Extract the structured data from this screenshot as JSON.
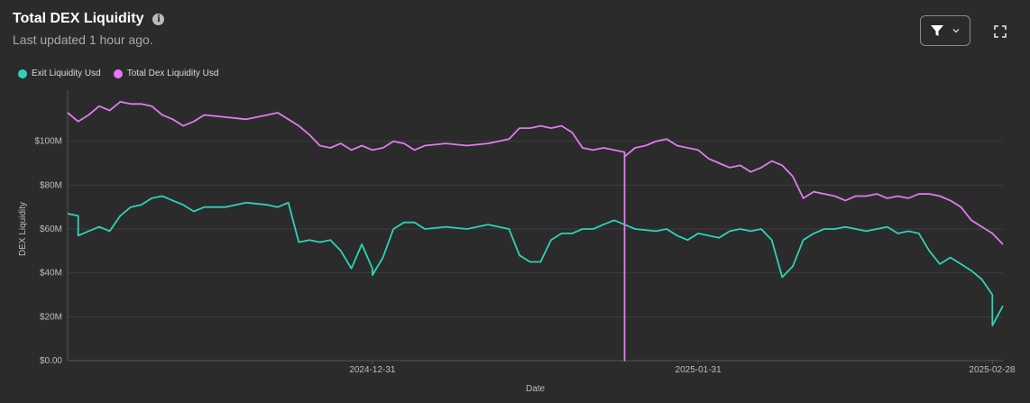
{
  "header": {
    "title": "Total DEX Liquidity",
    "subtitle": "Last updated 1 hour ago.",
    "info_icon": "info-icon"
  },
  "toolbar": {
    "filter_icon": "filter-icon",
    "dropdown_icon": "chevron-down-icon",
    "expand_icon": "expand-icon"
  },
  "colors": {
    "background": "#2b2b2b",
    "exit_liquidity": "#2ed3b7",
    "total_dex_liquidity": "#e27af2",
    "grid": "#3c3c3c"
  },
  "chart_data": {
    "type": "line",
    "xlabel": "Date",
    "ylabel": "DEX Liquidity",
    "x_range": [
      "2024-12-02",
      "2025-03-01"
    ],
    "x_ticks": [
      "2024-12-31",
      "2025-01-31",
      "2025-02-28"
    ],
    "y_ticks": [
      "$0.00",
      "$20M",
      "$40M",
      "$60M",
      "$80M",
      "$100M"
    ],
    "ylim": [
      0,
      120000000
    ],
    "grid": "horizontal",
    "legend_position": "top-left",
    "series": [
      {
        "name": "Exit Liquidity Usd",
        "color": "#2ed3b7",
        "points": [
          [
            "2024-12-02",
            67000000
          ],
          [
            "2024-12-03",
            66000000
          ],
          [
            "2024-12-03",
            57000000
          ],
          [
            "2024-12-04",
            59000000
          ],
          [
            "2024-12-05",
            61000000
          ],
          [
            "2024-12-06",
            59000000
          ],
          [
            "2024-12-07",
            66000000
          ],
          [
            "2024-12-08",
            70000000
          ],
          [
            "2024-12-09",
            71000000
          ],
          [
            "2024-12-10",
            74000000
          ],
          [
            "2024-12-11",
            75000000
          ],
          [
            "2024-12-12",
            73000000
          ],
          [
            "2024-12-13",
            71000000
          ],
          [
            "2024-12-14",
            68000000
          ],
          [
            "2024-12-15",
            70000000
          ],
          [
            "2024-12-17",
            70000000
          ],
          [
            "2024-12-19",
            72000000
          ],
          [
            "2024-12-21",
            71000000
          ],
          [
            "2024-12-22",
            70000000
          ],
          [
            "2024-12-23",
            72000000
          ],
          [
            "2024-12-24",
            54000000
          ],
          [
            "2024-12-25",
            55000000
          ],
          [
            "2024-12-26",
            54000000
          ],
          [
            "2024-12-27",
            55000000
          ],
          [
            "2024-12-28",
            50000000
          ],
          [
            "2024-12-29",
            42000000
          ],
          [
            "2024-12-30",
            53000000
          ],
          [
            "2024-12-31",
            42000000
          ],
          [
            "2024-12-31",
            39000000
          ],
          [
            "2025-01-01",
            47000000
          ],
          [
            "2025-01-02",
            60000000
          ],
          [
            "2025-01-03",
            63000000
          ],
          [
            "2025-01-04",
            63000000
          ],
          [
            "2025-01-05",
            60000000
          ],
          [
            "2025-01-07",
            61000000
          ],
          [
            "2025-01-09",
            60000000
          ],
          [
            "2025-01-11",
            62000000
          ],
          [
            "2025-01-13",
            60000000
          ],
          [
            "2025-01-14",
            48000000
          ],
          [
            "2025-01-15",
            45000000
          ],
          [
            "2025-01-16",
            45000000
          ],
          [
            "2025-01-17",
            55000000
          ],
          [
            "2025-01-18",
            58000000
          ],
          [
            "2025-01-19",
            58000000
          ],
          [
            "2025-01-20",
            60000000
          ],
          [
            "2025-01-21",
            60000000
          ],
          [
            "2025-01-22",
            62000000
          ],
          [
            "2025-01-23",
            64000000
          ],
          [
            "2025-01-24",
            62000000
          ],
          [
            "2025-01-25",
            60000000
          ],
          [
            "2025-01-27",
            59000000
          ],
          [
            "2025-01-28",
            60000000
          ],
          [
            "2025-01-29",
            57000000
          ],
          [
            "2025-01-30",
            55000000
          ],
          [
            "2025-01-31",
            58000000
          ],
          [
            "2025-02-02",
            56000000
          ],
          [
            "2025-02-03",
            59000000
          ],
          [
            "2025-02-04",
            60000000
          ],
          [
            "2025-02-05",
            59000000
          ],
          [
            "2025-02-06",
            60000000
          ],
          [
            "2025-02-07",
            55000000
          ],
          [
            "2025-02-08",
            38000000
          ],
          [
            "2025-02-09",
            43000000
          ],
          [
            "2025-02-10",
            55000000
          ],
          [
            "2025-02-11",
            58000000
          ],
          [
            "2025-02-12",
            60000000
          ],
          [
            "2025-02-13",
            60000000
          ],
          [
            "2025-02-14",
            61000000
          ],
          [
            "2025-02-15",
            60000000
          ],
          [
            "2025-02-16",
            59000000
          ],
          [
            "2025-02-17",
            60000000
          ],
          [
            "2025-02-18",
            61000000
          ],
          [
            "2025-02-19",
            58000000
          ],
          [
            "2025-02-20",
            59000000
          ],
          [
            "2025-02-21",
            58000000
          ],
          [
            "2025-02-22",
            50000000
          ],
          [
            "2025-02-23",
            44000000
          ],
          [
            "2025-02-24",
            47000000
          ],
          [
            "2025-02-25",
            44000000
          ],
          [
            "2025-02-26",
            41000000
          ],
          [
            "2025-02-27",
            37000000
          ],
          [
            "2025-02-28",
            30000000
          ],
          [
            "2025-02-28",
            16000000
          ],
          [
            "2025-03-01",
            25000000
          ]
        ]
      },
      {
        "name": "Total Dex Liquidity Usd",
        "color": "#e27af2",
        "points": [
          [
            "2024-12-02",
            113000000
          ],
          [
            "2024-12-03",
            109000000
          ],
          [
            "2024-12-04",
            112000000
          ],
          [
            "2024-12-05",
            116000000
          ],
          [
            "2024-12-06",
            114000000
          ],
          [
            "2024-12-07",
            118000000
          ],
          [
            "2024-12-08",
            117000000
          ],
          [
            "2024-12-09",
            117000000
          ],
          [
            "2024-12-10",
            116000000
          ],
          [
            "2024-12-11",
            112000000
          ],
          [
            "2024-12-12",
            110000000
          ],
          [
            "2024-12-13",
            107000000
          ],
          [
            "2024-12-14",
            109000000
          ],
          [
            "2024-12-15",
            112000000
          ],
          [
            "2024-12-17",
            111000000
          ],
          [
            "2024-12-19",
            110000000
          ],
          [
            "2024-12-21",
            112000000
          ],
          [
            "2024-12-22",
            113000000
          ],
          [
            "2024-12-23",
            110000000
          ],
          [
            "2024-12-24",
            107000000
          ],
          [
            "2024-12-25",
            103000000
          ],
          [
            "2024-12-26",
            98000000
          ],
          [
            "2024-12-27",
            97000000
          ],
          [
            "2024-12-28",
            99000000
          ],
          [
            "2024-12-29",
            96000000
          ],
          [
            "2024-12-30",
            98000000
          ],
          [
            "2024-12-31",
            96000000
          ],
          [
            "2025-01-01",
            97000000
          ],
          [
            "2025-01-02",
            100000000
          ],
          [
            "2025-01-03",
            99000000
          ],
          [
            "2025-01-04",
            96000000
          ],
          [
            "2025-01-05",
            98000000
          ],
          [
            "2025-01-07",
            99000000
          ],
          [
            "2025-01-09",
            98000000
          ],
          [
            "2025-01-11",
            99000000
          ],
          [
            "2025-01-13",
            101000000
          ],
          [
            "2025-01-14",
            106000000
          ],
          [
            "2025-01-15",
            106000000
          ],
          [
            "2025-01-16",
            107000000
          ],
          [
            "2025-01-17",
            106000000
          ],
          [
            "2025-01-18",
            107000000
          ],
          [
            "2025-01-19",
            104000000
          ],
          [
            "2025-01-20",
            97000000
          ],
          [
            "2025-01-21",
            96000000
          ],
          [
            "2025-01-22",
            97000000
          ],
          [
            "2025-01-23",
            96000000
          ],
          [
            "2025-01-24",
            95000000
          ],
          [
            "2025-01-24",
            0
          ],
          [
            "2025-01-24",
            93000000
          ],
          [
            "2025-01-25",
            97000000
          ],
          [
            "2025-01-26",
            98000000
          ],
          [
            "2025-01-27",
            100000000
          ],
          [
            "2025-01-28",
            101000000
          ],
          [
            "2025-01-29",
            98000000
          ],
          [
            "2025-01-30",
            97000000
          ],
          [
            "2025-01-31",
            96000000
          ],
          [
            "2025-02-01",
            92000000
          ],
          [
            "2025-02-02",
            90000000
          ],
          [
            "2025-02-03",
            88000000
          ],
          [
            "2025-02-04",
            89000000
          ],
          [
            "2025-02-05",
            86000000
          ],
          [
            "2025-02-06",
            88000000
          ],
          [
            "2025-02-07",
            91000000
          ],
          [
            "2025-02-08",
            89000000
          ],
          [
            "2025-02-09",
            84000000
          ],
          [
            "2025-02-10",
            74000000
          ],
          [
            "2025-02-11",
            77000000
          ],
          [
            "2025-02-12",
            76000000
          ],
          [
            "2025-02-13",
            75000000
          ],
          [
            "2025-02-14",
            73000000
          ],
          [
            "2025-02-15",
            75000000
          ],
          [
            "2025-02-16",
            75000000
          ],
          [
            "2025-02-17",
            76000000
          ],
          [
            "2025-02-18",
            74000000
          ],
          [
            "2025-02-19",
            75000000
          ],
          [
            "2025-02-20",
            74000000
          ],
          [
            "2025-02-21",
            76000000
          ],
          [
            "2025-02-22",
            76000000
          ],
          [
            "2025-02-23",
            75000000
          ],
          [
            "2025-02-24",
            73000000
          ],
          [
            "2025-02-25",
            70000000
          ],
          [
            "2025-02-26",
            64000000
          ],
          [
            "2025-02-27",
            61000000
          ],
          [
            "2025-02-28",
            58000000
          ],
          [
            "2025-03-01",
            53000000
          ]
        ]
      }
    ]
  }
}
